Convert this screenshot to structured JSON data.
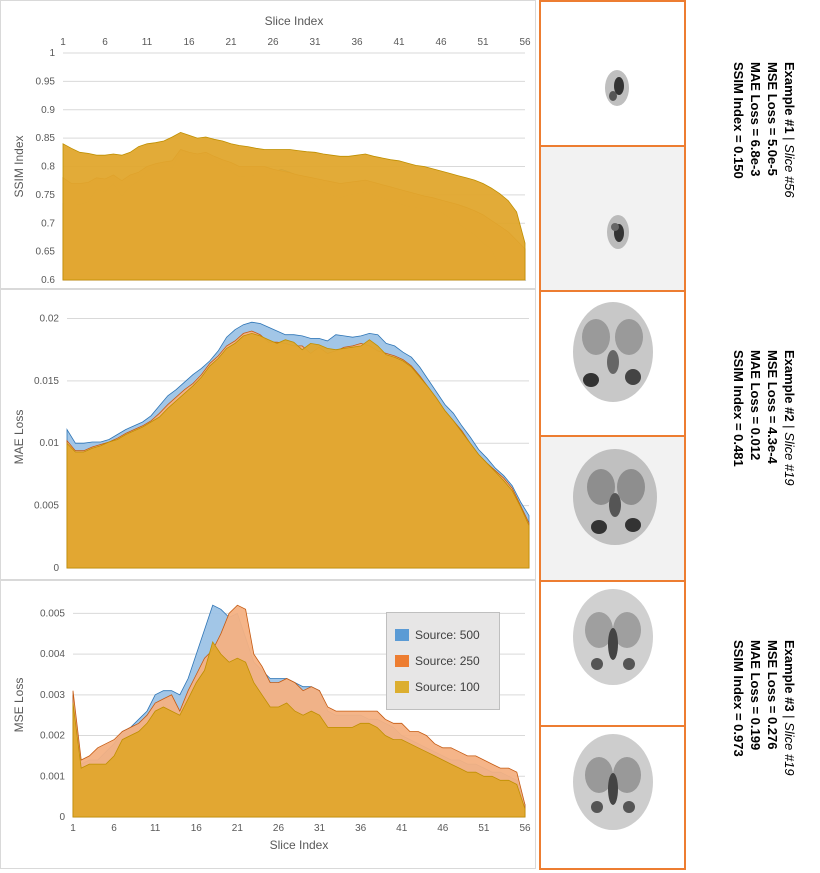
{
  "chart_data": [
    {
      "type": "area",
      "title": "",
      "x_top_label": "Slice Index",
      "ylabel": "SSIM Index",
      "xlim": [
        1,
        56
      ],
      "ylim": [
        0.6,
        1.0
      ],
      "x_ticks": [
        "1",
        "6",
        "11",
        "16",
        "21",
        "26",
        "31",
        "36",
        "41",
        "46",
        "51",
        "56"
      ],
      "y_ticks": [
        "0.6",
        "0.65",
        "0.7",
        "0.75",
        "0.8",
        "0.85",
        "0.9",
        "0.95",
        "1"
      ],
      "x": [
        1,
        2,
        3,
        4,
        5,
        6,
        7,
        8,
        9,
        10,
        11,
        12,
        13,
        14,
        15,
        16,
        17,
        18,
        19,
        20,
        21,
        22,
        23,
        24,
        25,
        26,
        27,
        28,
        29,
        30,
        31,
        32,
        33,
        34,
        35,
        36,
        37,
        38,
        39,
        40,
        41,
        42,
        43,
        44,
        45,
        46,
        47,
        48,
        49,
        50,
        51,
        52,
        53,
        54,
        55,
        56
      ],
      "series": [
        {
          "name": "Source: 500",
          "values": [
            0.735,
            0.734,
            0.733,
            0.738,
            0.76,
            0.755,
            0.77,
            0.748,
            0.765,
            0.775,
            0.792,
            0.8,
            0.8,
            0.798,
            0.828,
            0.823,
            0.818,
            0.822,
            0.81,
            0.8,
            0.792,
            0.782,
            0.783,
            0.785,
            0.785,
            0.79,
            0.795,
            0.79,
            0.783,
            0.775,
            0.768,
            0.755,
            0.75,
            0.745,
            0.75,
            0.752,
            0.755,
            0.75,
            0.745,
            0.74,
            0.735,
            0.73,
            0.728,
            0.725,
            0.725,
            0.72,
            0.71,
            0.7,
            0.69,
            0.68,
            0.665,
            0.655,
            0.62,
            0.61,
            0.61,
            0.6
          ]
        },
        {
          "name": "Source: 250",
          "values": [
            0.78,
            0.77,
            0.77,
            0.772,
            0.78,
            0.778,
            0.785,
            0.775,
            0.785,
            0.79,
            0.8,
            0.805,
            0.808,
            0.81,
            0.83,
            0.825,
            0.822,
            0.825,
            0.818,
            0.812,
            0.807,
            0.8,
            0.8,
            0.8,
            0.8,
            0.795,
            0.792,
            0.789,
            0.785,
            0.782,
            0.779,
            0.776,
            0.773,
            0.77,
            0.772,
            0.774,
            0.776,
            0.772,
            0.768,
            0.764,
            0.76,
            0.756,
            0.752,
            0.748,
            0.745,
            0.741,
            0.737,
            0.733,
            0.728,
            0.722,
            0.715,
            0.705,
            0.695,
            0.685,
            0.67,
            0.655
          ]
        },
        {
          "name": "Source: 100",
          "values": [
            0.84,
            0.832,
            0.825,
            0.823,
            0.82,
            0.82,
            0.822,
            0.82,
            0.825,
            0.835,
            0.84,
            0.842,
            0.845,
            0.852,
            0.86,
            0.855,
            0.85,
            0.852,
            0.848,
            0.845,
            0.84,
            0.837,
            0.835,
            0.832,
            0.83,
            0.83,
            0.83,
            0.83,
            0.828,
            0.826,
            0.825,
            0.822,
            0.82,
            0.818,
            0.818,
            0.82,
            0.822,
            0.818,
            0.815,
            0.812,
            0.81,
            0.806,
            0.802,
            0.8,
            0.796,
            0.792,
            0.788,
            0.784,
            0.78,
            0.776,
            0.77,
            0.762,
            0.752,
            0.74,
            0.72,
            0.665
          ]
        }
      ]
    },
    {
      "type": "area",
      "title": "",
      "ylabel": "MAE Loss",
      "xlim": [
        1,
        56
      ],
      "ylim": [
        0,
        0.021
      ],
      "y_ticks": [
        "0",
        "0.005",
        "0.01",
        "0.015",
        "0.02"
      ],
      "x": [
        1,
        2,
        3,
        4,
        5,
        6,
        7,
        8,
        9,
        10,
        11,
        12,
        13,
        14,
        15,
        16,
        17,
        18,
        19,
        20,
        21,
        22,
        23,
        24,
        25,
        26,
        27,
        28,
        29,
        30,
        31,
        32,
        33,
        34,
        35,
        36,
        37,
        38,
        39,
        40,
        41,
        42,
        43,
        44,
        45,
        46,
        47,
        48,
        49,
        50,
        51,
        52,
        53,
        54,
        55,
        56
      ],
      "series": [
        {
          "name": "Source: 500",
          "values": [
            0.0111,
            0.01,
            0.01,
            0.0101,
            0.0101,
            0.0103,
            0.0107,
            0.0111,
            0.0114,
            0.0117,
            0.0122,
            0.013,
            0.0138,
            0.0143,
            0.0149,
            0.0155,
            0.016,
            0.0166,
            0.0174,
            0.0185,
            0.0191,
            0.0195,
            0.0197,
            0.0196,
            0.0193,
            0.019,
            0.0187,
            0.0187,
            0.0186,
            0.0184,
            0.0184,
            0.0182,
            0.0187,
            0.0186,
            0.0185,
            0.0186,
            0.0188,
            0.0187,
            0.018,
            0.0178,
            0.0173,
            0.0169,
            0.0161,
            0.0151,
            0.0141,
            0.0131,
            0.0124,
            0.0114,
            0.0105,
            0.0095,
            0.0088,
            0.008,
            0.0074,
            0.0066,
            0.0053,
            0.0042
          ]
        },
        {
          "name": "Source: 250",
          "values": [
            0.0102,
            0.0094,
            0.0094,
            0.0097,
            0.0099,
            0.0101,
            0.0104,
            0.0108,
            0.0111,
            0.0114,
            0.0118,
            0.0124,
            0.0131,
            0.0137,
            0.0143,
            0.0148,
            0.0155,
            0.0164,
            0.017,
            0.0178,
            0.0182,
            0.0188,
            0.019,
            0.0187,
            0.0181,
            0.0181,
            0.018,
            0.0178,
            0.0178,
            0.0172,
            0.0177,
            0.0172,
            0.0174,
            0.0177,
            0.0178,
            0.018,
            0.0178,
            0.0174,
            0.0172,
            0.017,
            0.0167,
            0.0162,
            0.0154,
            0.0145,
            0.0136,
            0.0126,
            0.0118,
            0.011,
            0.01,
            0.0091,
            0.0084,
            0.0078,
            0.0072,
            0.0064,
            0.005,
            0.0036
          ]
        },
        {
          "name": "Source: 100",
          "values": [
            0.01,
            0.0093,
            0.0093,
            0.0096,
            0.0098,
            0.0101,
            0.0103,
            0.0107,
            0.011,
            0.0113,
            0.0117,
            0.0121,
            0.0128,
            0.0134,
            0.014,
            0.0146,
            0.0153,
            0.0162,
            0.0168,
            0.0176,
            0.018,
            0.0186,
            0.0188,
            0.0186,
            0.0183,
            0.018,
            0.0183,
            0.0181,
            0.0175,
            0.018,
            0.0179,
            0.0176,
            0.0175,
            0.0176,
            0.0177,
            0.0178,
            0.0183,
            0.0178,
            0.0171,
            0.0169,
            0.0166,
            0.0161,
            0.0153,
            0.0145,
            0.0136,
            0.0126,
            0.0118,
            0.0109,
            0.01,
            0.0091,
            0.0084,
            0.0077,
            0.007,
            0.0062,
            0.0049,
            0.0034
          ]
        }
      ]
    },
    {
      "type": "area",
      "title": "",
      "xlabel": "Slice Index",
      "ylabel": "MSE Loss",
      "xlim": [
        1,
        56
      ],
      "ylim": [
        0,
        0.0055
      ],
      "x_ticks": [
        "1",
        "6",
        "11",
        "16",
        "21",
        "26",
        "31",
        "36",
        "41",
        "46",
        "51",
        "56"
      ],
      "y_ticks": [
        "0",
        "0.001",
        "0.002",
        "0.003",
        "0.004",
        "0.005"
      ],
      "legend_position": "right",
      "x": [
        1,
        2,
        3,
        4,
        5,
        6,
        7,
        8,
        9,
        10,
        11,
        12,
        13,
        14,
        15,
        16,
        17,
        18,
        19,
        20,
        21,
        22,
        23,
        24,
        25,
        26,
        27,
        28,
        29,
        30,
        31,
        32,
        33,
        34,
        35,
        36,
        37,
        38,
        39,
        40,
        41,
        42,
        43,
        44,
        45,
        46,
        47,
        48,
        49,
        50,
        51,
        52,
        53,
        54,
        55,
        56
      ],
      "series": [
        {
          "name": "Source: 500",
          "values": [
            0.003,
            0.0013,
            0.0014,
            0.0014,
            0.0016,
            0.0018,
            0.0021,
            0.0022,
            0.0024,
            0.0026,
            0.003,
            0.0031,
            0.0031,
            0.003,
            0.0034,
            0.004,
            0.0046,
            0.0052,
            0.0051,
            0.0049,
            0.005,
            0.0044,
            0.0038,
            0.0036,
            0.0034,
            0.0034,
            0.0034,
            0.0033,
            0.0032,
            0.0032,
            0.0031,
            0.0026,
            0.0025,
            0.0025,
            0.0025,
            0.0025,
            0.0024,
            0.0024,
            0.0023,
            0.0022,
            0.002,
            0.0019,
            0.0018,
            0.0017,
            0.0016,
            0.0015,
            0.0014,
            0.0014,
            0.0013,
            0.0013,
            0.0012,
            0.0011,
            0.0011,
            0.001,
            0.0009,
            0.0003
          ]
        },
        {
          "name": "Source: 250",
          "values": [
            0.0031,
            0.0014,
            0.0015,
            0.0017,
            0.0018,
            0.0019,
            0.0021,
            0.0022,
            0.0023,
            0.0025,
            0.0028,
            0.0029,
            0.003,
            0.0026,
            0.0031,
            0.0035,
            0.0039,
            0.0041,
            0.0045,
            0.005,
            0.0052,
            0.0051,
            0.004,
            0.0037,
            0.0033,
            0.0033,
            0.0034,
            0.0033,
            0.0031,
            0.0032,
            0.0031,
            0.0027,
            0.0026,
            0.0026,
            0.0026,
            0.0026,
            0.0026,
            0.0026,
            0.0024,
            0.0023,
            0.0023,
            0.0021,
            0.0021,
            0.002,
            0.0018,
            0.0017,
            0.0017,
            0.0016,
            0.0015,
            0.0015,
            0.0014,
            0.0013,
            0.0012,
            0.0012,
            0.0011,
            0.0003
          ]
        },
        {
          "name": "Source: 100",
          "values": [
            0.0028,
            0.0012,
            0.0013,
            0.0013,
            0.0013,
            0.0015,
            0.0019,
            0.002,
            0.0021,
            0.0023,
            0.0026,
            0.0027,
            0.0026,
            0.0025,
            0.0029,
            0.0033,
            0.0036,
            0.0043,
            0.004,
            0.0038,
            0.0039,
            0.0038,
            0.0033,
            0.003,
            0.0027,
            0.0027,
            0.0028,
            0.0026,
            0.0025,
            0.0026,
            0.0025,
            0.0022,
            0.0022,
            0.0022,
            0.0022,
            0.0023,
            0.0023,
            0.0022,
            0.002,
            0.0019,
            0.0019,
            0.0018,
            0.0017,
            0.0016,
            0.0015,
            0.0014,
            0.0013,
            0.0012,
            0.0011,
            0.0011,
            0.001,
            0.001,
            0.0009,
            0.0009,
            0.0008,
            0.0002
          ]
        }
      ]
    }
  ],
  "legend": {
    "items": [
      {
        "label": "Source: 500",
        "color": "#5b9bd5"
      },
      {
        "label": "Source: 250",
        "color": "#ed7d31"
      },
      {
        "label": "Source: 100",
        "color": "#dcae2f"
      }
    ]
  },
  "colors": {
    "s500": "#9dc3e6",
    "s500_line": "#2e75b6",
    "s250": "#f4b183",
    "s250_line": "#c55a11",
    "s100": "#e0a72d",
    "s100_line": "#bf8f00",
    "frame": "#ed7d31"
  },
  "examples": [
    {
      "title": "Example #1",
      "slice": "Slice #56",
      "mse": "MSE Loss = 5.0e-5",
      "mae": "MAE Loss = 6.8e-3",
      "ssim": "SSIM Index = 0.150"
    },
    {
      "title": "Example #2",
      "slice": "Slice #19",
      "mse": "MSE Loss = 4.3e-4",
      "mae": "MAE Loss = 0.012",
      "ssim": "SSIM Index = 0.481"
    },
    {
      "title": "Example #3",
      "slice": "Slice #19",
      "mse": "MSE Loss = 0.276",
      "mae": "MAE Loss = 0.199",
      "ssim": "SSIM Index = 0.973"
    }
  ]
}
